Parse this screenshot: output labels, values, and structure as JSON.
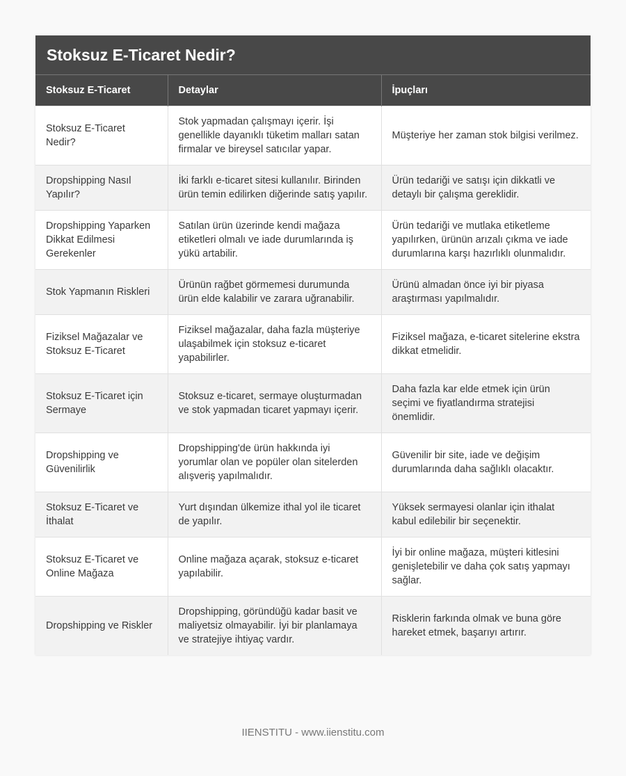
{
  "title": "Stoksuz E-Ticaret Nedir?",
  "columns": [
    "Stoksuz E-Ticaret",
    "Detaylar",
    "İpuçları"
  ],
  "rows": [
    [
      "Stoksuz E-Ticaret Nedir?",
      "Stok yapmadan çalışmayı içerir. İşi genellikle dayanıklı tüketim malları satan firmalar ve bireysel satıcılar yapar.",
      "Müşteriye her zaman stok bilgisi verilmez."
    ],
    [
      "Dropshipping Nasıl Yapılır?",
      "İki farklı e-ticaret sitesi kullanılır. Birinden ürün temin edilirken diğerinde satış yapılır.",
      "Ürün tedariği ve satışı için dikkatli ve detaylı bir çalışma gereklidir."
    ],
    [
      "Dropshipping Yaparken Dikkat Edilmesi Gerekenler",
      "Satılan ürün üzerinde kendi mağaza etiketleri olmalı ve iade durumlarında iş yükü artabilir.",
      "Ürün tedariği ve mutlaka etiketleme yapılırken, ürünün arızalı çıkma ve iade durumlarına karşı hazırlıklı olunmalıdır."
    ],
    [
      "Stok Yapmanın Riskleri",
      "Ürünün rağbet görmemesi durumunda ürün elde kalabilir ve zarara uğranabilir.",
      "Ürünü almadan önce iyi bir piyasa araştırması yapılmalıdır."
    ],
    [
      "Fiziksel Mağazalar ve Stoksuz E-Ticaret",
      "Fiziksel mağazalar, daha fazla müşteriye ulaşabilmek için stoksuz e-ticaret yapabilirler.",
      "Fiziksel mağaza, e-ticaret sitelerine ekstra dikkat etmelidir."
    ],
    [
      "Stoksuz E-Ticaret için Sermaye",
      "Stoksuz e-ticaret, sermaye oluşturmadan ve stok yapmadan ticaret yapmayı içerir.",
      "Daha fazla kar elde etmek için ürün seçimi ve fiyatlandırma stratejisi önemlidir."
    ],
    [
      "Dropshipping ve Güvenilirlik",
      "Dropshipping'de ürün hakkında iyi yorumlar olan ve popüler olan sitelerden alışveriş yapılmalıdır.",
      "Güvenilir bir site, iade ve değişim durumlarında daha sağlıklı olacaktır."
    ],
    [
      "Stoksuz E-Ticaret ve İthalat",
      "Yurt dışından ülkemize ithal yol ile ticaret de yapılır.",
      "Yüksek sermayesi olanlar için ithalat kabul edilebilir bir seçenektir."
    ],
    [
      "Stoksuz E-Ticaret ve Online Mağaza",
      "Online mağaza açarak, stoksuz e-ticaret yapılabilir.",
      "İyi bir online mağaza, müşteri kitlesini genişletebilir ve daha çok satış yapmayı sağlar."
    ],
    [
      "Dropshipping ve Riskler",
      "Dropshipping, göründüğü kadar basit ve maliyetsiz olmayabilir. İyi bir planlamaya ve stratejiye ihtiyaç vardır.",
      "Risklerin farkında olmak ve buna göre hareket etmek, başarıyı artırır."
    ]
  ],
  "footer": "IIENSTITU - www.iienstitu.com"
}
